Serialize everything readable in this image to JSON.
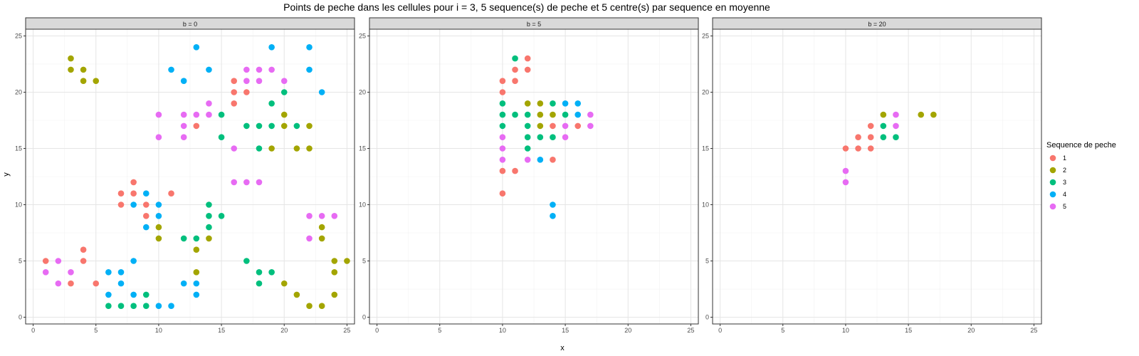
{
  "chart_data": {
    "type": "scatter",
    "title": "Points de peche dans les cellules pour i = 3, 5 sequence(s) de peche et 5 centre(s) par sequence en moyenne",
    "xlabel": "x",
    "ylabel": "y",
    "xlim": [
      -0.6,
      25.6
    ],
    "ylim": [
      -0.6,
      25.6
    ],
    "xticks": [
      0,
      5,
      10,
      15,
      20,
      25
    ],
    "yticks": [
      0,
      5,
      10,
      15,
      20,
      25
    ],
    "grid": true,
    "legend": {
      "title": "Sequence de peche",
      "placement": "right",
      "entries": [
        {
          "label": "1",
          "color": "#F8766D"
        },
        {
          "label": "2",
          "color": "#A3A500"
        },
        {
          "label": "3",
          "color": "#00BF7D"
        },
        {
          "label": "4",
          "color": "#00B0F6"
        },
        {
          "label": "5",
          "color": "#E76BF3"
        }
      ]
    },
    "panels": [
      {
        "label": "b = 0",
        "series": [
          {
            "name": "1",
            "points": [
              [
                1,
                5
              ],
              [
                3,
                3
              ],
              [
                4,
                6
              ],
              [
                4,
                5
              ],
              [
                5,
                3
              ],
              [
                7,
                11
              ],
              [
                7,
                10
              ],
              [
                8,
                12
              ],
              [
                8,
                11
              ],
              [
                9,
                10
              ],
              [
                9,
                9
              ],
              [
                11,
                11
              ],
              [
                13,
                17
              ],
              [
                16,
                21
              ],
              [
                16,
                20
              ],
              [
                16,
                19
              ],
              [
                17,
                20
              ]
            ]
          },
          {
            "name": "2",
            "points": [
              [
                3,
                23
              ],
              [
                3,
                22
              ],
              [
                4,
                22
              ],
              [
                4,
                21
              ],
              [
                5,
                21
              ],
              [
                10,
                8
              ],
              [
                10,
                7
              ],
              [
                13,
                6
              ],
              [
                13,
                4
              ],
              [
                14,
                7
              ],
              [
                19,
                15
              ],
              [
                20,
                18
              ],
              [
                20,
                17
              ],
              [
                20,
                3
              ],
              [
                21,
                15
              ],
              [
                21,
                2
              ],
              [
                22,
                17
              ],
              [
                22,
                15
              ],
              [
                22,
                1
              ],
              [
                23,
                8
              ],
              [
                23,
                7
              ],
              [
                23,
                1
              ],
              [
                24,
                5
              ],
              [
                24,
                4
              ],
              [
                24,
                2
              ],
              [
                25,
                5
              ]
            ]
          },
          {
            "name": "3",
            "points": [
              [
                6,
                1
              ],
              [
                7,
                1
              ],
              [
                8,
                1
              ],
              [
                9,
                2
              ],
              [
                9,
                1
              ],
              [
                12,
                7
              ],
              [
                13,
                7
              ],
              [
                14,
                10
              ],
              [
                14,
                9
              ],
              [
                14,
                8
              ],
              [
                15,
                9
              ],
              [
                15,
                18
              ],
              [
                15,
                16
              ],
              [
                17,
                17
              ],
              [
                17,
                5
              ],
              [
                18,
                17
              ],
              [
                18,
                15
              ],
              [
                18,
                4
              ],
              [
                18,
                3
              ],
              [
                19,
                19
              ],
              [
                19,
                17
              ],
              [
                19,
                4
              ],
              [
                20,
                20
              ],
              [
                21,
                17
              ]
            ]
          },
          {
            "name": "4",
            "points": [
              [
                6,
                4
              ],
              [
                6,
                2
              ],
              [
                7,
                4
              ],
              [
                7,
                3
              ],
              [
                8,
                10
              ],
              [
                8,
                5
              ],
              [
                8,
                2
              ],
              [
                9,
                11
              ],
              [
                9,
                8
              ],
              [
                10,
                10
              ],
              [
                10,
                9
              ],
              [
                10,
                1
              ],
              [
                11,
                22
              ],
              [
                11,
                1
              ],
              [
                12,
                21
              ],
              [
                12,
                3
              ],
              [
                13,
                24
              ],
              [
                13,
                3
              ],
              [
                13,
                2
              ],
              [
                14,
                22
              ],
              [
                19,
                24
              ],
              [
                22,
                24
              ],
              [
                22,
                22
              ],
              [
                23,
                20
              ]
            ]
          },
          {
            "name": "5",
            "points": [
              [
                1,
                4
              ],
              [
                2,
                5
              ],
              [
                2,
                3
              ],
              [
                3,
                4
              ],
              [
                10,
                18
              ],
              [
                10,
                16
              ],
              [
                12,
                18
              ],
              [
                12,
                17
              ],
              [
                12,
                16
              ],
              [
                13,
                18
              ],
              [
                14,
                19
              ],
              [
                14,
                18
              ],
              [
                16,
                15
              ],
              [
                16,
                12
              ],
              [
                17,
                22
              ],
              [
                17,
                21
              ],
              [
                17,
                12
              ],
              [
                18,
                22
              ],
              [
                18,
                21
              ],
              [
                18,
                12
              ],
              [
                19,
                22
              ],
              [
                20,
                21
              ],
              [
                22,
                9
              ],
              [
                22,
                7
              ],
              [
                23,
                9
              ],
              [
                24,
                9
              ]
            ]
          }
        ]
      },
      {
        "label": "b = 5",
        "series": [
          {
            "name": "1",
            "points": [
              [
                10,
                21
              ],
              [
                10,
                20
              ],
              [
                10,
                13
              ],
              [
                10,
                11
              ],
              [
                11,
                22
              ],
              [
                11,
                21
              ],
              [
                11,
                13
              ],
              [
                12,
                23
              ],
              [
                12,
                22
              ],
              [
                14,
                17
              ],
              [
                14,
                14
              ],
              [
                16,
                17
              ]
            ]
          },
          {
            "name": "2",
            "points": [
              [
                12,
                19
              ],
              [
                13,
                19
              ],
              [
                13,
                18
              ],
              [
                13,
                17
              ],
              [
                14,
                18
              ]
            ]
          },
          {
            "name": "3",
            "points": [
              [
                10,
                19
              ],
              [
                10,
                18
              ],
              [
                10,
                17
              ],
              [
                11,
                23
              ],
              [
                11,
                18
              ],
              [
                12,
                18
              ],
              [
                12,
                17
              ],
              [
                12,
                16
              ],
              [
                12,
                15
              ],
              [
                13,
                16
              ],
              [
                14,
                19
              ],
              [
                14,
                16
              ],
              [
                15,
                18
              ]
            ]
          },
          {
            "name": "4",
            "points": [
              [
                13,
                14
              ],
              [
                14,
                10
              ],
              [
                14,
                9
              ],
              [
                15,
                19
              ],
              [
                16,
                19
              ],
              [
                16,
                18
              ]
            ]
          },
          {
            "name": "5",
            "points": [
              [
                10,
                16
              ],
              [
                10,
                15
              ],
              [
                10,
                14
              ],
              [
                12,
                14
              ],
              [
                15,
                17
              ],
              [
                15,
                16
              ],
              [
                17,
                18
              ],
              [
                17,
                17
              ]
            ]
          }
        ]
      },
      {
        "label": "b = 20",
        "series": [
          {
            "name": "1",
            "points": [
              [
                10,
                15
              ],
              [
                11,
                16
              ],
              [
                11,
                15
              ],
              [
                12,
                17
              ],
              [
                12,
                16
              ],
              [
                12,
                15
              ]
            ]
          },
          {
            "name": "2",
            "points": [
              [
                13,
                18
              ],
              [
                16,
                18
              ],
              [
                17,
                18
              ]
            ]
          },
          {
            "name": "3",
            "points": [
              [
                13,
                17
              ],
              [
                13,
                16
              ],
              [
                14,
                16
              ]
            ]
          },
          {
            "name": "4",
            "points": []
          },
          {
            "name": "5",
            "points": [
              [
                10,
                13
              ],
              [
                10,
                12
              ],
              [
                14,
                18
              ],
              [
                14,
                17
              ]
            ]
          }
        ]
      }
    ]
  }
}
